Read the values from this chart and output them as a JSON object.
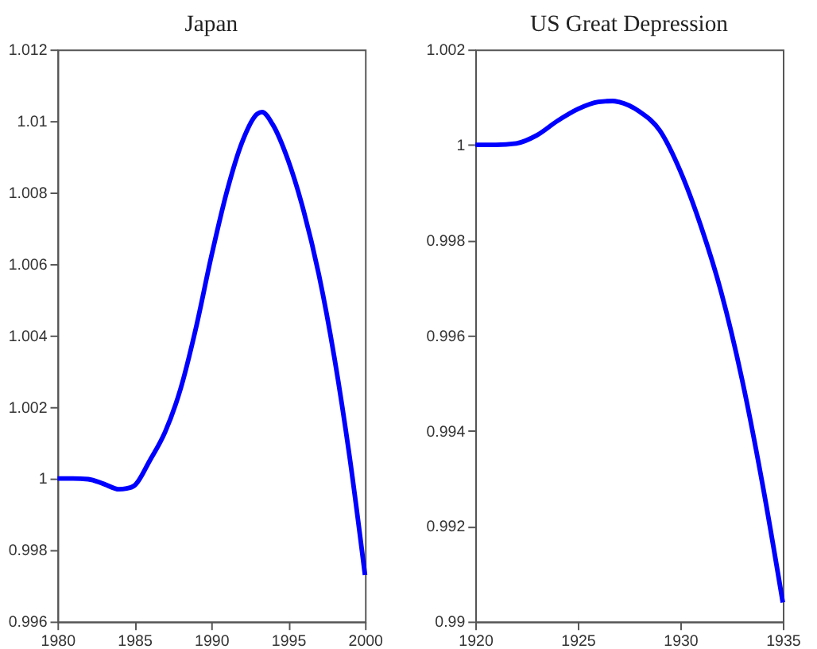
{
  "chart_data": [
    {
      "type": "line",
      "title": "Japan",
      "x": [
        1980,
        1981,
        1982,
        1983,
        1984,
        1984.5,
        1985,
        1986,
        1987,
        1988,
        1989,
        1990,
        1991,
        1992,
        1993,
        1993.3,
        1994,
        1995,
        1996,
        1997,
        1998,
        1999,
        2000
      ],
      "series": [
        {
          "color": "#0000ff",
          "values": [
            1.0,
            1.0,
            0.99998,
            0.99985,
            0.9997,
            0.99972,
            0.9998,
            1.0005,
            1.0013,
            1.0025,
            1.0042,
            1.0062,
            1.008,
            1.0094,
            1.0102,
            1.01025,
            1.0099,
            1.0089,
            1.0075,
            1.0057,
            1.0034,
            1.0006,
            0.9973
          ]
        }
      ],
      "xlim": [
        1980,
        2000
      ],
      "xticks": [
        1980,
        1985,
        1990,
        1995,
        2000
      ],
      "ylim": [
        0.996,
        1.012
      ],
      "yticks": [
        0.996,
        0.998,
        1,
        1.002,
        1.004,
        1.006,
        1.008,
        1.01,
        1.012
      ],
      "grid": false,
      "marker": "none",
      "line_style": "solid"
    },
    {
      "type": "line",
      "title": "US Great Depression",
      "x": [
        1920,
        1921,
        1922,
        1923,
        1924,
        1925,
        1926,
        1926.7,
        1927,
        1928,
        1929,
        1930,
        1931,
        1932,
        1933,
        1934,
        1935
      ],
      "series": [
        {
          "color": "#0000ff",
          "values": [
            1.0,
            1.0,
            1.00003,
            1.0002,
            1.0005,
            1.00075,
            1.0009,
            1.00092,
            1.0009,
            1.0007,
            1.0003,
            0.99945,
            0.9983,
            0.9969,
            0.9951,
            0.9929,
            0.9904
          ]
        }
      ],
      "xlim": [
        1920,
        1935
      ],
      "xticks": [
        1920,
        1925,
        1930,
        1935
      ],
      "ylim": [
        0.99,
        1.002
      ],
      "yticks": [
        0.99,
        0.992,
        0.994,
        0.996,
        0.998,
        1,
        1.002
      ],
      "grid": false,
      "marker": "none",
      "line_style": "solid"
    }
  ]
}
